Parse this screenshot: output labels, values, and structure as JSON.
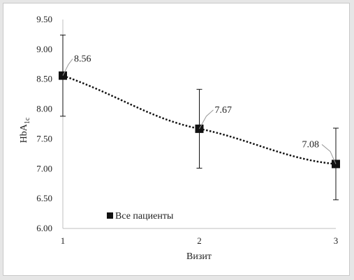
{
  "chart_data": {
    "type": "line",
    "xlabel": "Визит",
    "ylabel_main": "HbA",
    "ylabel_sub": "1c",
    "ylim": [
      6.0,
      9.5
    ],
    "yticks": [
      "6.00",
      "6.50",
      "7.00",
      "7.50",
      "8.00",
      "8.50",
      "9.00",
      "9.50"
    ],
    "xticks": [
      "1",
      "2",
      "3"
    ],
    "x": [
      1,
      2,
      3
    ],
    "series": [
      {
        "name": "Все пациенты",
        "values": [
          8.56,
          7.67,
          7.08
        ],
        "labels": [
          "8.56",
          "7.67",
          "7.08"
        ],
        "error_low": [
          7.88,
          7.01,
          6.48
        ],
        "error_high": [
          9.24,
          8.33,
          7.68
        ]
      }
    ],
    "legend_position": "bottom-left",
    "grid": false,
    "line_style": "dotted",
    "marker": "square",
    "colors": {
      "series": "#111111",
      "axis": "#bfbfbf",
      "leader": "#9a9a9a"
    }
  }
}
